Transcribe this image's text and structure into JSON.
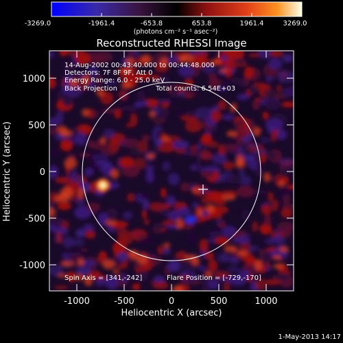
{
  "colorbar": {
    "ticks": [
      "-3269.0",
      "-1961.4",
      "-653.8",
      "653.8",
      "1961.4",
      "3269.0"
    ],
    "units": "(photons cm⁻² s⁻¹ asec⁻²)"
  },
  "title": "Reconstructed RHESSI Image",
  "info": {
    "time_range": "14-Aug-2002 00:43:40.000 to 00:44:48.000",
    "detectors": "Detectors: 7F 8F 9F, Att 0",
    "energy": "Energy Range: 6.0 - 25.0 keV",
    "method": "Back Projection",
    "total_counts": "Total counts: 6.54E+03"
  },
  "spin_axis": "Spin Axis = [341,-242]",
  "flare_position": "Flare Position = [-729,-170]",
  "axes": {
    "xlabel": "Heliocentric X (arcsec)",
    "ylabel": "Heliocentric Y (arcsec)",
    "xticks": [
      "-1000",
      "-500",
      "0",
      "500",
      "1000"
    ],
    "yticks": [
      "1000",
      "500",
      "0",
      "-500",
      "-1000"
    ]
  },
  "footer": "1-May-2013 14:17",
  "colors": {
    "neg": "#3a1a78",
    "pos_low": "#a01010",
    "pos_mid": "#e04020",
    "pos_high": "#ffd040",
    "bg": "#000000"
  }
}
